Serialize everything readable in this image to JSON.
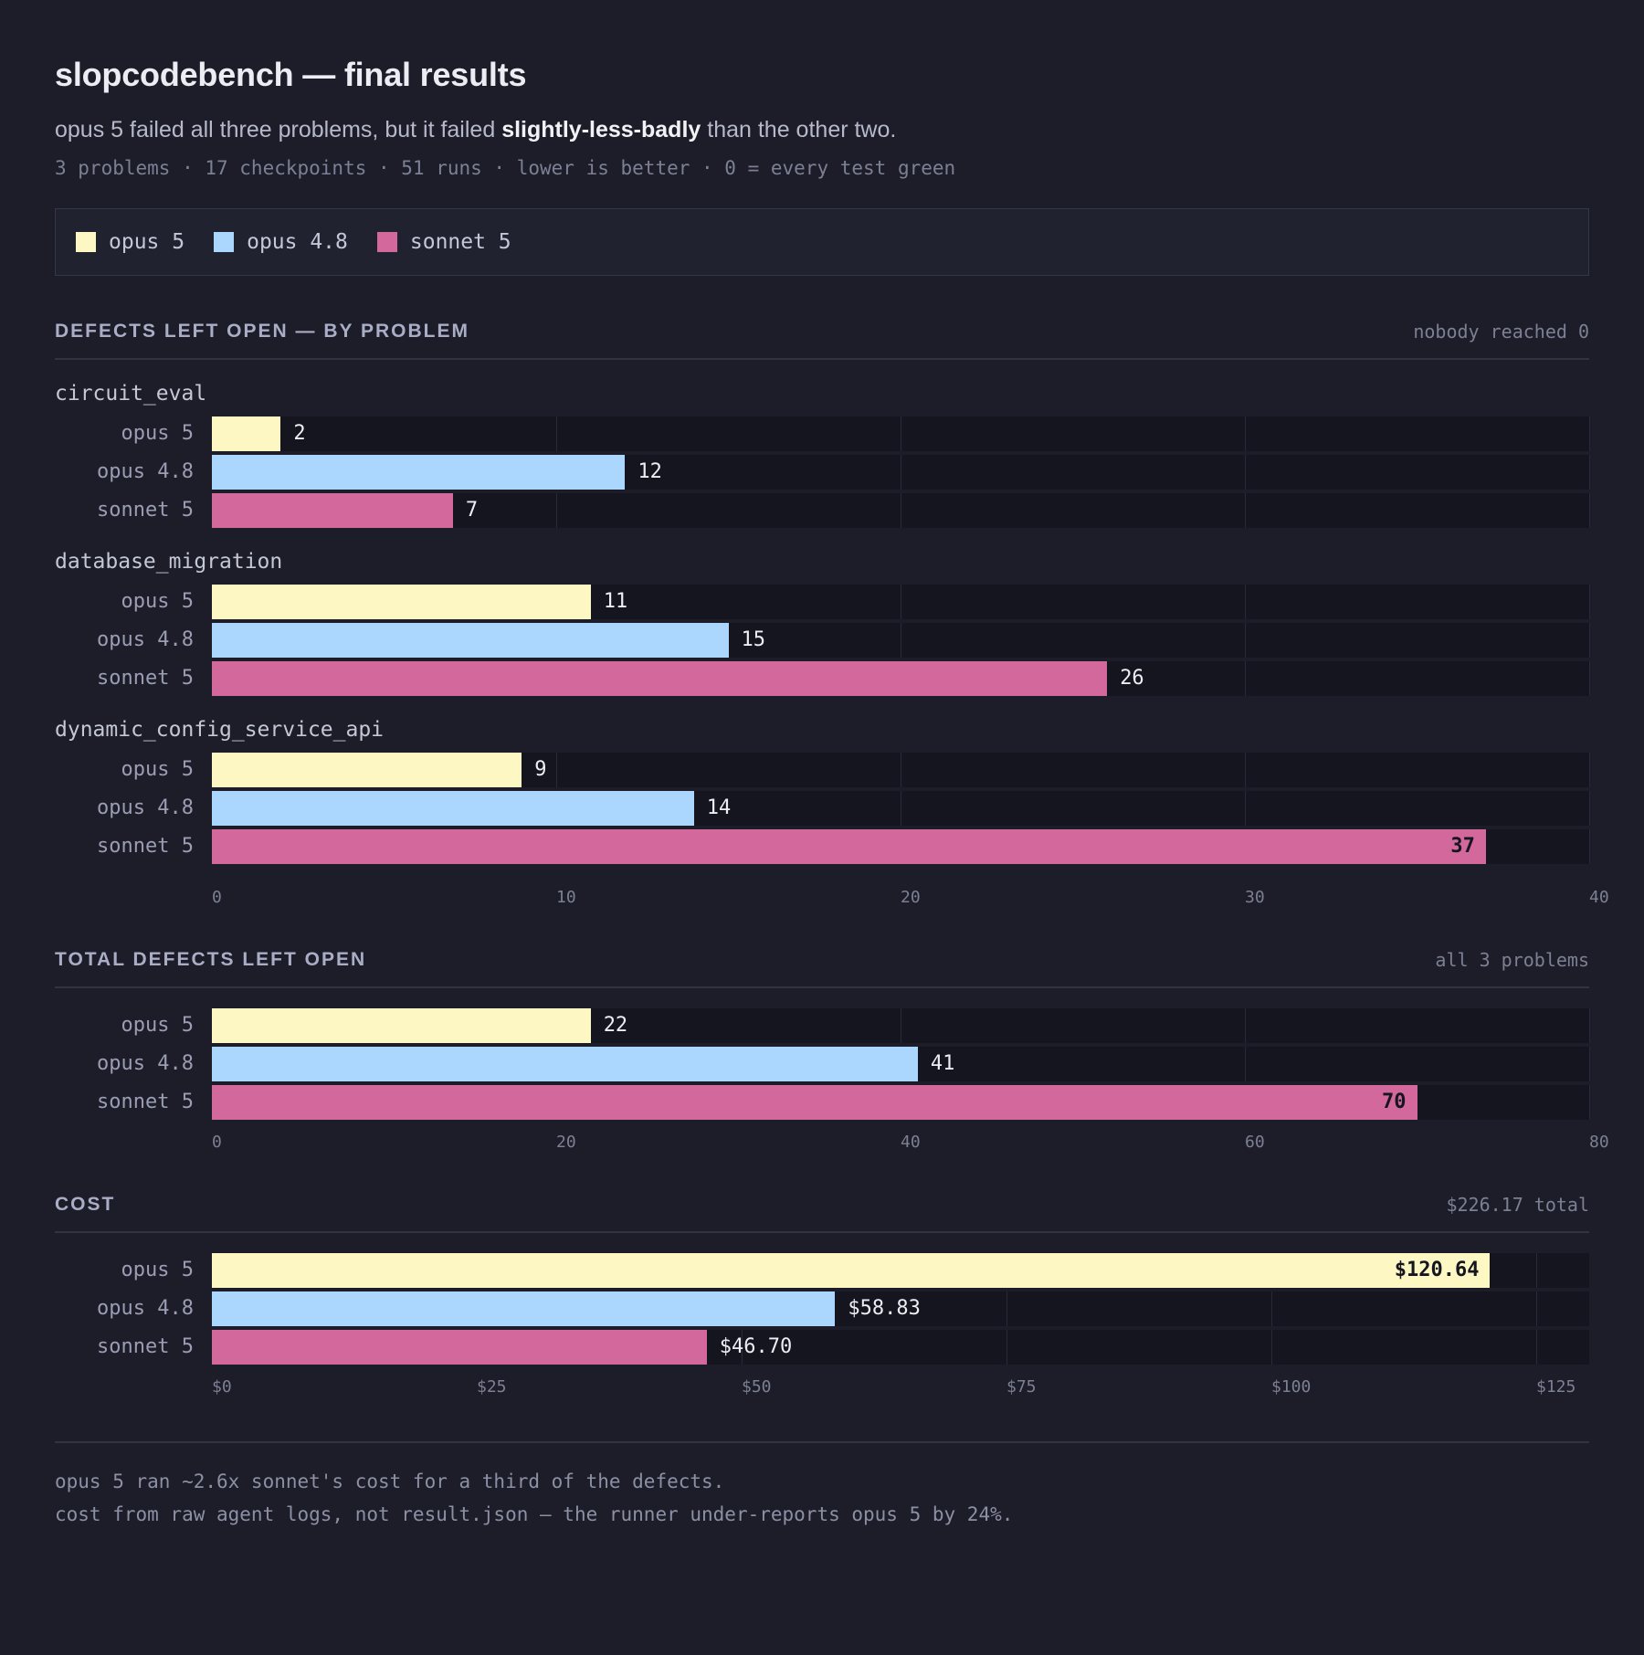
{
  "header": {
    "title": "slopcodebench — final results",
    "subtitle_pre": "opus 5 failed all three problems, but it failed ",
    "subtitle_bold": "slightly-less-badly",
    "subtitle_post": " than the other two.",
    "meta": "3 problems · 17 checkpoints · 51 runs · lower is better · 0 = every test green"
  },
  "colors": {
    "opus 5": "#fdf8c3",
    "opus 4.8": "#abd6fd",
    "sonnet 5": "#d2689c"
  },
  "legend": [
    "opus 5",
    "opus 4.8",
    "sonnet 5"
  ],
  "sections": {
    "by_problem": {
      "title": "DEFECTS LEFT OPEN — BY PROBLEM",
      "note": "nobody reached 0"
    },
    "total": {
      "title": "TOTAL DEFECTS LEFT OPEN",
      "note": "all 3 problems"
    },
    "cost": {
      "title": "COST",
      "note": "$226.17 total"
    }
  },
  "chart_data": [
    {
      "type": "bar",
      "orientation": "horizontal",
      "title": "DEFECTS LEFT OPEN — BY PROBLEM",
      "xlim": [
        0,
        40
      ],
      "ticks": [
        "0",
        "10",
        "20",
        "30",
        "40"
      ],
      "groups": [
        {
          "name": "circuit_eval",
          "series": [
            {
              "name": "opus 5",
              "value": 2,
              "label": "2"
            },
            {
              "name": "opus 4.8",
              "value": 12,
              "label": "12"
            },
            {
              "name": "sonnet 5",
              "value": 7,
              "label": "7"
            }
          ]
        },
        {
          "name": "database_migration",
          "series": [
            {
              "name": "opus 5",
              "value": 11,
              "label": "11"
            },
            {
              "name": "opus 4.8",
              "value": 15,
              "label": "15"
            },
            {
              "name": "sonnet 5",
              "value": 26,
              "label": "26"
            }
          ]
        },
        {
          "name": "dynamic_config_service_api",
          "series": [
            {
              "name": "opus 5",
              "value": 9,
              "label": "9"
            },
            {
              "name": "opus 4.8",
              "value": 14,
              "label": "14"
            },
            {
              "name": "sonnet 5",
              "value": 37,
              "label": "37",
              "inside": true
            }
          ]
        }
      ]
    },
    {
      "type": "bar",
      "orientation": "horizontal",
      "title": "TOTAL DEFECTS LEFT OPEN",
      "xlim": [
        0,
        80
      ],
      "ticks": [
        "0",
        "20",
        "40",
        "60",
        "80"
      ],
      "groups": [
        {
          "name": "",
          "series": [
            {
              "name": "opus 5",
              "value": 22,
              "label": "22"
            },
            {
              "name": "opus 4.8",
              "value": 41,
              "label": "41"
            },
            {
              "name": "sonnet 5",
              "value": 70,
              "label": "70",
              "inside": true
            }
          ]
        }
      ]
    },
    {
      "type": "bar",
      "orientation": "horizontal",
      "title": "COST",
      "xlim": [
        0,
        130
      ],
      "ticks": [
        "$0",
        "$25",
        "$50",
        "$75",
        "$100",
        "$125"
      ],
      "tick_values": [
        0,
        25,
        50,
        75,
        100,
        125
      ],
      "groups": [
        {
          "name": "",
          "series": [
            {
              "name": "opus 5",
              "value": 120.64,
              "label": "$120.64",
              "inside": true
            },
            {
              "name": "opus 4.8",
              "value": 58.83,
              "label": "$58.83"
            },
            {
              "name": "sonnet 5",
              "value": 46.7,
              "label": "$46.70"
            }
          ]
        }
      ]
    }
  ],
  "footer": {
    "line1": "opus 5 ran ~2.6x sonnet's cost for a third of the defects.",
    "line2": "cost from raw agent logs, not result.json — the runner under-reports opus 5 by 24%."
  }
}
